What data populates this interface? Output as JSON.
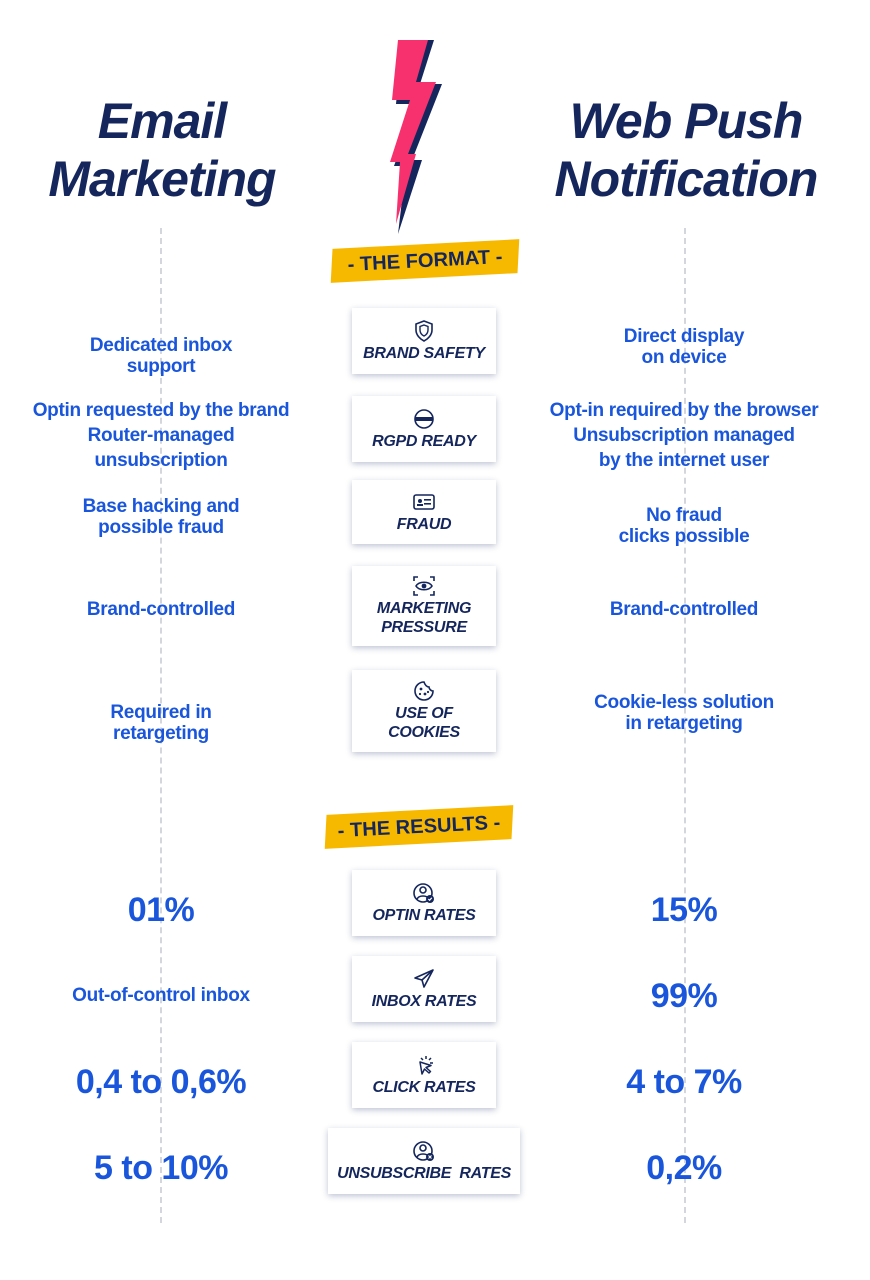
{
  "titles": {
    "left": "Email\nMarketing",
    "right": "Web Push\nNotification"
  },
  "sections": {
    "format": "- THE FORMAT -",
    "results": "- THE RESULTS -"
  },
  "colors": {
    "navy": "#14265c",
    "blue": "#1a56db",
    "pink": "#f7306e",
    "yellow": "#f7b800"
  },
  "format_rows": [
    {
      "label": "BRAND SAFETY",
      "icon": "shield-icon",
      "email": "Dedicated inbox\nsupport",
      "push": "Direct display\non device"
    },
    {
      "label": "RGPD READY",
      "icon": "padlock-icon",
      "email": "Optin requested by the brand\nRouter-managed\nunsubscription",
      "push": "Opt-in required by the browser\nUnsubscription managed\nby the internet user"
    },
    {
      "label": "FRAUD",
      "icon": "id-card-icon",
      "email": "Base  hacking and\npossible fraud",
      "push": "No fraud\nclicks possible"
    },
    {
      "label": "MARKETING\nPRESSURE",
      "icon": "eye-scan-icon",
      "email": "Brand-controlled",
      "push": "Brand-controlled"
    },
    {
      "label": "USE OF\nCOOKIES",
      "icon": "cookie-icon",
      "email": "Required in\nretargeting",
      "push": "Cookie-less solution\nin retargeting"
    }
  ],
  "result_rows": [
    {
      "label": "OPTIN RATES",
      "icon": "user-check-icon",
      "email": "01%",
      "push": "15%"
    },
    {
      "label": "INBOX RATES",
      "icon": "paper-plane-icon",
      "email": "Out-of-control inbox",
      "push": "99%"
    },
    {
      "label": "CLICK RATES",
      "icon": "cursor-click-icon",
      "email": "0,4 to 0,6%",
      "push": "4 to 7%"
    },
    {
      "label": "UNSUBSCRIBE  RATES",
      "icon": "user-remove-icon",
      "email": "5 to 10%",
      "push": "0,2%"
    }
  ]
}
